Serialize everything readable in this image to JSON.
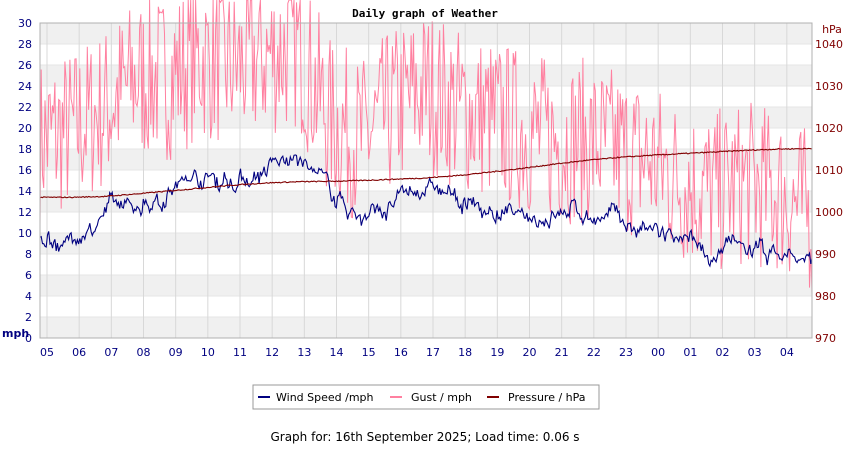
{
  "chart_data": {
    "type": "line",
    "title": "Daily graph of Weather",
    "left_axis": {
      "unit": "mph",
      "min": 0,
      "max": 30,
      "ticks": [
        0,
        2,
        4,
        6,
        8,
        10,
        12,
        14,
        16,
        18,
        20,
        22,
        24,
        26,
        28,
        30
      ]
    },
    "right_axis": {
      "unit": "hPa",
      "min": 970,
      "max": 1045,
      "ticks": [
        970,
        980,
        990,
        1000,
        1010,
        1020,
        1030,
        1040
      ]
    },
    "x_ticks": [
      "05",
      "06",
      "07",
      "08",
      "09",
      "10",
      "11",
      "12",
      "13",
      "14",
      "15",
      "16",
      "17",
      "18",
      "19",
      "20",
      "21",
      "22",
      "23",
      "00",
      "01",
      "02",
      "03",
      "04"
    ],
    "series": [
      {
        "name": "Wind Speed /mph",
        "axis": "left",
        "color": "#000080",
        "hourly_values": [
          9.5,
          9.2,
          12.0,
          12.5,
          14.0,
          15.5,
          15.0,
          16.0,
          17.0,
          14.0,
          11.5,
          12.5,
          14.5,
          13.0,
          12.0,
          11.0,
          12.0,
          12.0,
          11.0,
          10.0,
          8.5,
          8.0,
          8.5,
          8.0,
          7.0
        ]
      },
      {
        "name": "Gust / mph",
        "axis": "left",
        "color": "#ff80a0",
        "hourly_values": [
          18,
          19,
          21,
          24,
          24,
          26,
          25,
          26,
          27,
          20,
          18,
          21,
          23,
          21,
          20,
          19,
          18,
          18,
          17,
          16,
          14,
          13,
          14,
          13,
          11
        ]
      },
      {
        "name": "Pressure / hPa",
        "axis": "right",
        "color": "#800000",
        "hourly_values": [
          1003.5,
          1003.5,
          1003.7,
          1004.3,
          1005.0,
          1005.7,
          1006.4,
          1006.9,
          1007.2,
          1007.3,
          1007.5,
          1007.8,
          1008.1,
          1008.7,
          1009.5,
          1010.4,
          1011.4,
          1012.3,
          1013.0,
          1013.5,
          1013.9,
          1014.3,
          1014.7,
          1015.0,
          1015.1
        ]
      }
    ],
    "legend": "bottom-center",
    "grid": true
  },
  "footer": "Graph for: 16th September 2025; Load time: 0.06 s"
}
